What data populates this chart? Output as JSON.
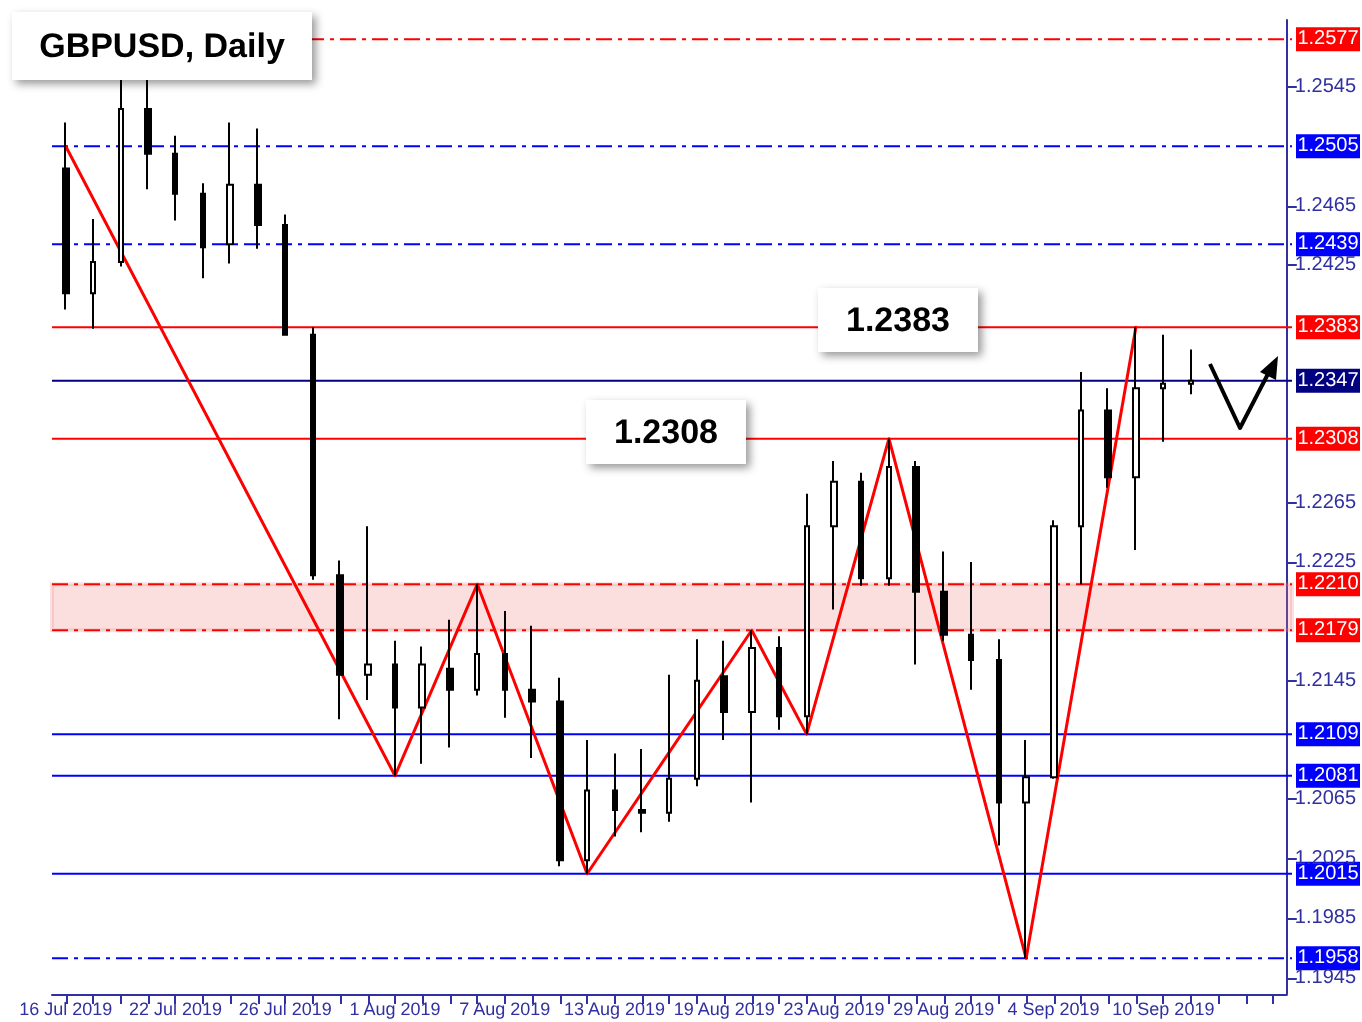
{
  "chart_data": {
    "type": "candlestick",
    "title": "GBPUSD, Daily",
    "categories": [
      "16 Jul 2019",
      null,
      null,
      null,
      "22 Jul 2019",
      null,
      null,
      null,
      "26 Jul 2019",
      null,
      null,
      null,
      "1 Aug 2019",
      null,
      null,
      null,
      "7 Aug 2019",
      null,
      null,
      null,
      "13 Aug 2019",
      null,
      null,
      null,
      "19 Aug 2019",
      null,
      null,
      null,
      "23 Aug 2019",
      null,
      null,
      null,
      "29 Aug 2019",
      null,
      null,
      null,
      "4 Sep 2019",
      null,
      null,
      null,
      "10 Sep 2019",
      null
    ],
    "series": [
      {
        "color": "#000000",
        "ohlc": [
          [
            1.249,
            1.2521,
            1.2395,
            1.2406
          ],
          [
            1.2406,
            1.2456,
            1.2382,
            1.2427
          ],
          [
            1.2427,
            1.255,
            1.2424,
            1.253
          ],
          [
            1.253,
            1.255,
            1.2476,
            1.25
          ],
          [
            1.25,
            1.2512,
            1.2455,
            1.2473
          ],
          [
            1.2473,
            1.248,
            1.2416,
            1.2437
          ],
          [
            1.2439,
            1.2521,
            1.2426,
            1.2479
          ],
          [
            1.2479,
            1.2517,
            1.2436,
            1.2452
          ],
          [
            1.2452,
            1.2459,
            1.2378,
            1.2378
          ],
          [
            1.2378,
            1.2383,
            1.2213,
            1.2216
          ],
          [
            1.2216,
            1.2226,
            1.2119,
            1.2149
          ],
          [
            1.2149,
            1.2249,
            1.2132,
            1.2156
          ],
          [
            1.2156,
            1.2172,
            1.2081,
            1.2127
          ],
          [
            1.2127,
            1.2168,
            1.2089,
            1.2156
          ],
          [
            1.2153,
            1.2186,
            1.21,
            1.2139
          ],
          [
            1.2139,
            1.221,
            1.2135,
            1.2163
          ],
          [
            1.2163,
            1.2192,
            1.212,
            1.2139
          ],
          [
            1.2139,
            1.2182,
            1.2093,
            1.2131
          ],
          [
            1.2131,
            1.2147,
            1.202,
            1.2024
          ],
          [
            1.2024,
            1.2105,
            1.2015,
            1.2071
          ],
          [
            1.2071,
            1.2096,
            1.204,
            1.2058
          ],
          [
            1.2058,
            1.2099,
            1.2043,
            1.2056
          ],
          [
            1.2056,
            1.2149,
            1.205,
            1.2079
          ],
          [
            1.2079,
            1.2173,
            1.2074,
            1.2145
          ],
          [
            1.2148,
            1.2172,
            1.2105,
            1.2124
          ],
          [
            1.2124,
            1.2179,
            1.2063,
            1.2167
          ],
          [
            1.2167,
            1.2175,
            1.2112,
            1.2121
          ],
          [
            1.2121,
            1.2271,
            1.2109,
            1.2249
          ],
          [
            1.2249,
            1.2293,
            1.2193,
            1.2279
          ],
          [
            1.2279,
            1.2285,
            1.2209,
            1.2214
          ],
          [
            1.2214,
            1.2308,
            1.2209,
            1.2289
          ],
          [
            1.2289,
            1.2293,
            1.2156,
            1.2205
          ],
          [
            1.2205,
            1.2232,
            1.2172,
            1.2176
          ],
          [
            1.2176,
            1.2225,
            1.2139,
            1.2159
          ],
          [
            1.2159,
            1.2173,
            1.2034,
            1.2063
          ],
          [
            1.2063,
            1.2105,
            1.1958,
            1.208
          ],
          [
            1.208,
            1.2253,
            1.2079,
            1.2249
          ],
          [
            1.2249,
            1.2353,
            1.221,
            1.2327
          ],
          [
            1.2327,
            1.2342,
            1.2275,
            1.2282
          ],
          [
            1.2282,
            1.2383,
            1.2233,
            1.2342
          ],
          [
            1.2342,
            1.2378,
            1.2306,
            1.2345
          ],
          [
            1.2345,
            1.2368,
            1.2338,
            1.2347
          ]
        ]
      },
      {
        "type": "line",
        "color": "#ff0000",
        "marker": "none",
        "values": [
          1.2505,
          null,
          null,
          null,
          null,
          null,
          null,
          null,
          null,
          null,
          null,
          null,
          1.2081,
          null,
          null,
          1.221,
          null,
          null,
          null,
          1.2015,
          null,
          null,
          null,
          null,
          null,
          1.2179,
          null,
          1.2109,
          null,
          null,
          1.2308,
          null,
          null,
          null,
          null,
          1.1958,
          null,
          null,
          null,
          1.2383,
          null,
          null
        ]
      }
    ],
    "ylim": [
      1.1934,
      1.259
    ],
    "yticks": [
      1.1945,
      1.1985,
      1.2025,
      1.2065,
      1.2145,
      1.2225,
      1.2265,
      1.2425,
      1.2465,
      1.2545
    ],
    "ref_lines": [
      {
        "axis": "y",
        "value": 1.2577,
        "label": "1.2577",
        "color": "#ff0000",
        "line_style": "dashed"
      },
      {
        "axis": "y",
        "value": 1.2505,
        "label": "1.2505",
        "color": "#0000ff",
        "line_style": "dashed"
      },
      {
        "axis": "y",
        "value": 1.2439,
        "label": "1.2439",
        "color": "#0000ff",
        "line_style": "dashed"
      },
      {
        "axis": "y",
        "value": 1.2383,
        "label": "1.2383",
        "color": "#ff0000",
        "line_style": "solid"
      },
      {
        "axis": "y",
        "value": 1.2347,
        "label": "1.2347",
        "color": "#000080",
        "line_style": "solid"
      },
      {
        "axis": "y",
        "value": 1.2308,
        "label": "1.2308",
        "color": "#ff0000",
        "line_style": "solid"
      },
      {
        "axis": "y",
        "value": 1.221,
        "label": "1.2210",
        "color": "#ff0000",
        "line_style": "dashed"
      },
      {
        "axis": "y",
        "value": 1.2179,
        "label": "1.2179",
        "color": "#ff0000",
        "line_style": "dashed"
      },
      {
        "axis": "y",
        "value": 1.2109,
        "label": "1.2109",
        "color": "#0000ff",
        "line_style": "solid"
      },
      {
        "axis": "y",
        "value": 1.2081,
        "label": "1.2081",
        "color": "#0000ff",
        "line_style": "solid"
      },
      {
        "axis": "y",
        "value": 1.2015,
        "label": "1.2015",
        "color": "#0000ff",
        "line_style": "solid"
      },
      {
        "axis": "y",
        "value": 1.1958,
        "label": "1.1958",
        "color": "#0000ff",
        "line_style": "dashed"
      }
    ],
    "bands": [
      {
        "axis": "y",
        "from": 1.2179,
        "to": 1.221,
        "color": "#f08080"
      }
    ],
    "annotations": [
      "1.2383",
      "1.2308"
    ]
  }
}
